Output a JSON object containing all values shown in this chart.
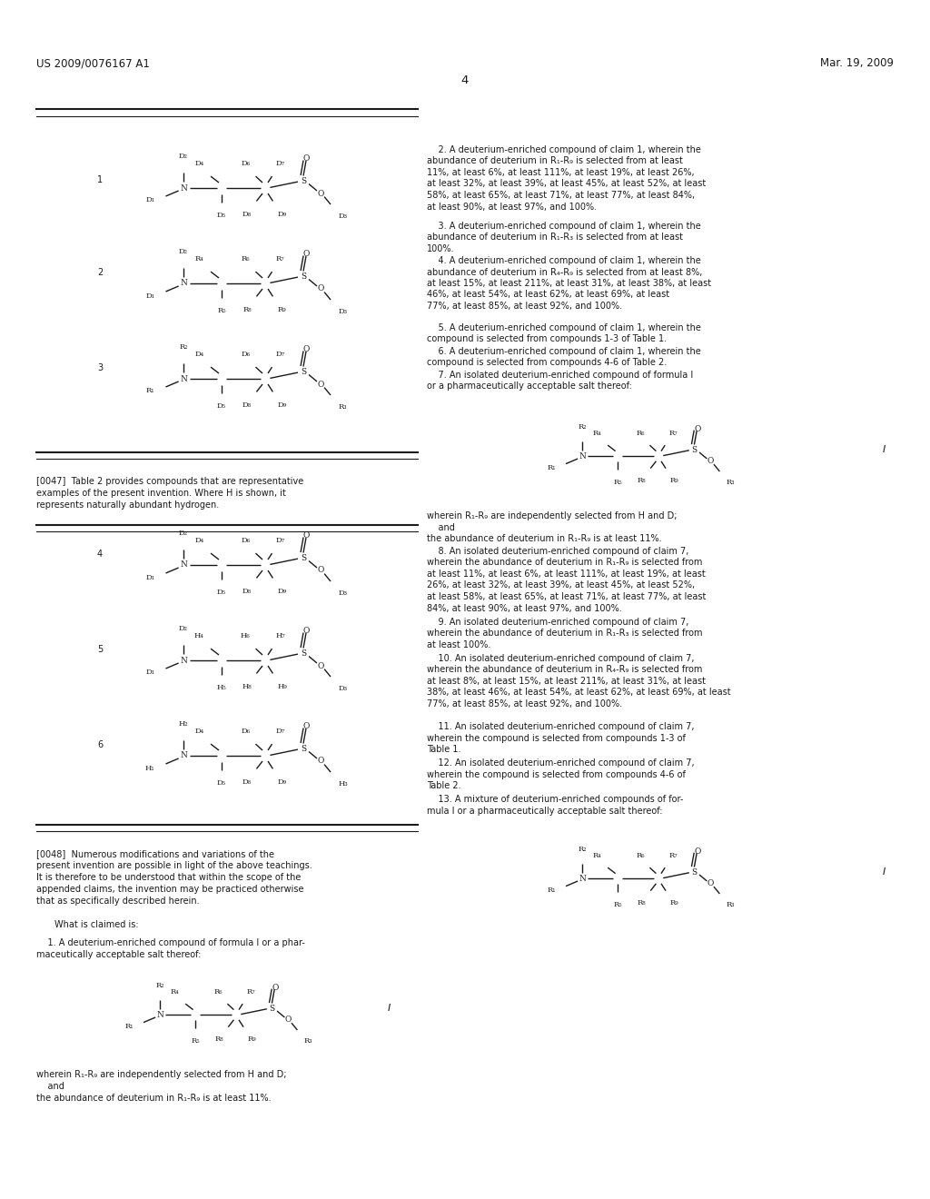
{
  "page_number": "4",
  "header_left": "US 2009/0076167 A1",
  "header_right": "Mar. 19, 2009",
  "background_color": "#ffffff",
  "text_color": "#1a1a1a",
  "font_size_header": 8.5,
  "font_size_body": 7.0,
  "compounds_table1": [
    {
      "num": "1",
      "r1": "D₁",
      "r2": "D₂",
      "r3": "D₃",
      "r4": "D₄",
      "r5": "D₅",
      "r6": "D₆",
      "r7": "D₇",
      "r8": "D₈",
      "r9": "D₉"
    },
    {
      "num": "2",
      "r1": "D₁",
      "r2": "D₂",
      "r3": "D₃",
      "r4": "R₄",
      "r5": "R₅",
      "r6": "R₆",
      "r7": "R₇",
      "r8": "R₈",
      "r9": "R₉"
    },
    {
      "num": "3",
      "r1": "R₁",
      "r2": "R₂",
      "r3": "R₃",
      "r4": "D₄",
      "r5": "D₅",
      "r6": "D₆",
      "r7": "D₇",
      "r8": "D₈",
      "r9": "D₉"
    }
  ],
  "compounds_table2": [
    {
      "num": "4",
      "r1": "D₁",
      "r2": "D₂",
      "r3": "D₃",
      "r4": "D₄",
      "r5": "D₅",
      "r6": "D₆",
      "r7": "D₇",
      "r8": "D₈",
      "r9": "D₉"
    },
    {
      "num": "5",
      "r1": "D₁",
      "r2": "D₂",
      "r3": "D₃",
      "r4": "H₄",
      "r5": "H₅",
      "r6": "H₆",
      "r7": "H₇",
      "r8": "H₈",
      "r9": "H₉"
    },
    {
      "num": "6",
      "r1": "H₁",
      "r2": "H₂",
      "r3": "H₃",
      "r4": "D₄",
      "r5": "D₅",
      "r6": "D₆",
      "r7": "D₇",
      "r8": "D₈",
      "r9": "D₉"
    }
  ],
  "para_0047": "[0047] Table 2 provides compounds that are representative examples of the present invention. Where H is shown, it represents naturally abundant hydrogen.",
  "para_0048": "[0048] Numerous modifications and variations of the present invention are possible in light of the above teachings. It is therefore to be understood that within the scope of the appended claims, the invention may be practiced otherwise that as specifically described herein.",
  "claims_header": "What is claimed is:",
  "claim1_text": "1. A deuterium-enriched compound of formula I or a pharmaceutically acceptable salt thereof:",
  "formula_i_r": [
    "R₁",
    "R₂",
    "R₃",
    "R₄",
    "R₅",
    "R₆",
    "R₇",
    "R₈",
    "R₉"
  ],
  "wherein_text1": "wherein R₁-R₉ are independently selected from H and D;\n    and\nthe abundance of deuterium in R₁-R₉ is at least 11%.",
  "right_col_claim2_text": "2. A deuterium-enriched compound of claim 1, wherein the abundance of deuterium in R₁-R₉ is selected from at least 11%, at least 6%, at least 111%, at least 19%, at least 26%, at least 32%, at least 39%, at least 45%, at least 52%, at least 58%, at least 65%, at least 71%, at least 77%, at least 84%, at least 90%, at least 97%, and 100%.",
  "right_col_claim3_text": "3. A deuterium-enriched compound of claim 1, wherein the abundance of deuterium in R₁-R₃ is selected from at least 100%.",
  "right_col_claim4_text": "4. A deuterium-enriched compound of claim 1, wherein the abundance of deuterium in R₄-R₉ is selected from at least 8%, at least 15%, at least 211%, at least 31%, at least 38%, at least 46%, at least 54%, at least 62%, at least 69%, at least 77%, at least 85%, at least 92%, and 100%.",
  "right_col_claim5_text": "5. A deuterium-enriched compound of claim 1, wherein the compound is selected from compounds 1-3 of Table 1.",
  "right_col_claim6_text": "6. A deuterium-enriched compound of claim 1, wherein the compound is selected from compounds 4-6 of Table 2.",
  "right_col_claim7_text": "7. An isolated deuterium-enriched compound of formula I or a pharmaceutically acceptable salt thereof:",
  "wherein_text7": "wherein R₁-R₉ are independently selected from H and D;\n    and\nthe abundance of deuterium in R₁-R₉ is at least 11%.",
  "right_col_claim8_text": "8. An isolated deuterium-enriched compound of claim 7, wherein the abundance of deuterium in R₁-R₉ is selected from at least 11%, at least 6%, at least 111%, at least 19%, at least 26%, at least 32%, at least 39%, at least 45%, at least 52%, at least 58%, at least 65%, at least 71%, at least 77%, at least 84%, at least 90%, at least 97%, and 100%.",
  "right_col_claim9_text": "9. An isolated deuterium-enriched compound of claim 7, wherein the abundance of deuterium in R₁-R₃ is selected from at least 100%.",
  "right_col_claim10_text": "10. An isolated deuterium-enriched compound of claim 7, wherein the abundance of deuterium in R₄-R₉ is selected from at least 8%, at least 15%, at least 211%, at least 31%, at least 38%, at least 46%, at least 54%, at least 62%, at least 69%, at least 77%, at least 85%, at least 92%, and 100%.",
  "right_col_claim11_text": "11. An isolated deuterium-enriched compound of claim 7, wherein the compound is selected from compounds 1-3 of Table 1.",
  "right_col_claim12_text": "12. An isolated deuterium-enriched compound of claim 7, wherein the compound is selected from compounds 4-6 of Table 2.",
  "right_col_claim13_text": "13. A mixture of deuterium-enriched compounds of formula I or a pharmaceutically acceptable salt thereof:"
}
